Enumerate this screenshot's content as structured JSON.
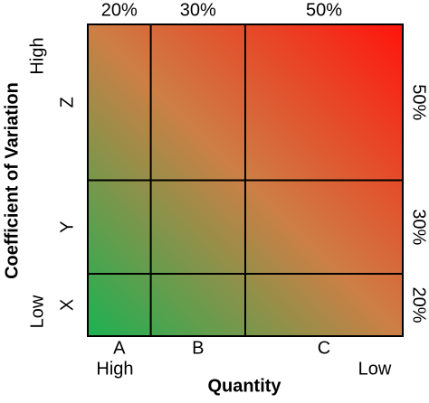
{
  "x_axis": {
    "title": "Quantity",
    "start_label": "High",
    "end_label": "Low",
    "columns": [
      {
        "label": "A",
        "share": "20%"
      },
      {
        "label": "B",
        "share": "30%"
      },
      {
        "label": "C",
        "share": "50%"
      }
    ]
  },
  "y_axis": {
    "title": "Coefficient of Variation",
    "top_label": "High",
    "bottom_label": "Low",
    "rows": [
      {
        "label": "Z",
        "share": "50%"
      },
      {
        "label": "Y",
        "share": "30%"
      },
      {
        "label": "X",
        "share": "20%"
      }
    ]
  }
}
